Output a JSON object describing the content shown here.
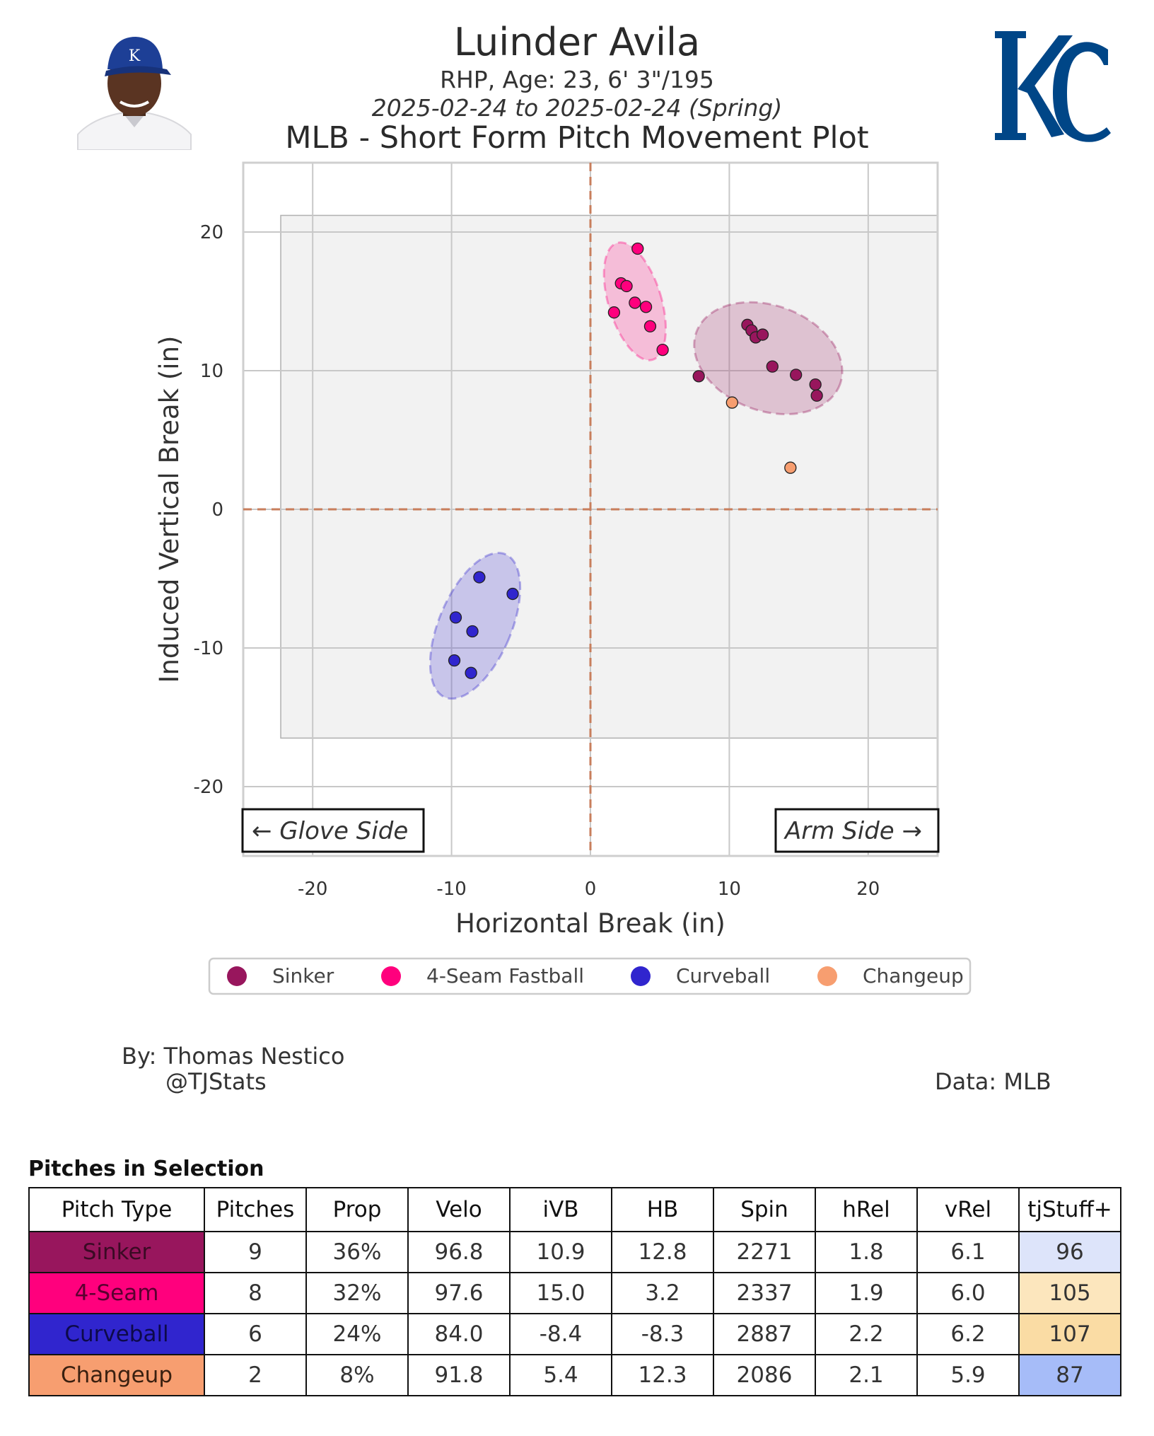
{
  "header": {
    "name": "Luinder Avila",
    "bio": "RHP, Age: 23, 6' 3\"/195",
    "dates": "2025-02-24 to 2025-02-24 (Spring)",
    "title": "MLB - Short Form Pitch Movement Plot"
  },
  "team": {
    "logo_text": "KC",
    "color": "#004687"
  },
  "chart_data": {
    "type": "scatter",
    "title": "MLB - Short Form Pitch Movement Plot",
    "xlabel": "Horizontal Break (in)",
    "ylabel": "Induced Vertical Break (in)",
    "xlim": [
      -25,
      25
    ],
    "ylim": [
      -25,
      25
    ],
    "xticks": [
      -20,
      -10,
      0,
      10,
      20
    ],
    "yticks": [
      20,
      10,
      0,
      -10,
      -20
    ],
    "grid": true,
    "strike_box": {
      "x": [
        -22.3,
        25
      ],
      "y": [
        -16.5,
        21.2
      ]
    },
    "annotations": {
      "left": "← Glove Side",
      "right": "Arm Side →"
    },
    "legend_position": "bottom",
    "series": [
      {
        "name": "Sinker",
        "color": "#98165d",
        "ellipse": {
          "cx": 12.8,
          "cy": 10.9,
          "rx": 5.5,
          "ry": 3.8,
          "angle": 20
        },
        "points": [
          [
            7.8,
            9.6
          ],
          [
            11.3,
            13.3
          ],
          [
            11.6,
            12.9
          ],
          [
            11.9,
            12.4
          ],
          [
            12.4,
            12.6
          ],
          [
            13.1,
            10.3
          ],
          [
            14.8,
            9.7
          ],
          [
            16.2,
            9.0
          ],
          [
            16.3,
            8.2
          ]
        ]
      },
      {
        "name": "4-Seam Fastball",
        "color": "#ff007d",
        "ellipse": {
          "cx": 3.2,
          "cy": 15.0,
          "rx": 1.9,
          "ry": 4.4,
          "angle": -17
        },
        "points": [
          [
            3.4,
            18.8
          ],
          [
            2.2,
            16.3
          ],
          [
            2.6,
            16.1
          ],
          [
            3.2,
            14.9
          ],
          [
            1.7,
            14.2
          ],
          [
            4.3,
            13.2
          ],
          [
            5.2,
            11.5
          ],
          [
            4.0,
            14.6
          ]
        ]
      },
      {
        "name": "Curveball",
        "color": "#3025ce",
        "ellipse": {
          "cx": -8.3,
          "cy": -8.4,
          "rx": 2.6,
          "ry": 5.6,
          "angle": 23
        },
        "points": [
          [
            -8.0,
            -4.9
          ],
          [
            -5.6,
            -6.1
          ],
          [
            -9.7,
            -7.8
          ],
          [
            -8.5,
            -8.8
          ],
          [
            -9.8,
            -10.9
          ],
          [
            -8.6,
            -11.8
          ]
        ]
      },
      {
        "name": "Changeup",
        "color": "#f79e70",
        "ellipse": null,
        "points": [
          [
            10.2,
            7.7
          ],
          [
            14.4,
            3.0
          ]
        ]
      }
    ]
  },
  "credits": {
    "by_line": "By: Thomas Nestico",
    "handle": "@TJStats",
    "data": "Data: MLB"
  },
  "table": {
    "title": "Pitches in Selection",
    "headers": [
      "Pitch Type",
      "Pitches",
      "Prop",
      "Velo",
      "iVB",
      "HB",
      "Spin",
      "hRel",
      "vRel",
      "tjStuff+"
    ],
    "rows": [
      {
        "type": "Sinker",
        "type_color": "#98165d",
        "type_text_color": "#3a0a24",
        "values": [
          "9",
          "36%",
          "96.8",
          "10.9",
          "12.8",
          "2271",
          "1.8",
          "6.1"
        ],
        "stuff": "96",
        "stuff_color": "#dde4fa"
      },
      {
        "type": "4-Seam",
        "type_color": "#ff007d",
        "type_text_color": "#5a0030",
        "values": [
          "8",
          "32%",
          "97.6",
          "15.0",
          "3.2",
          "2337",
          "1.9",
          "6.0"
        ],
        "stuff": "105",
        "stuff_color": "#fce6bd"
      },
      {
        "type": "Curveball",
        "type_color": "#3025ce",
        "type_text_color": "#0d0a4a",
        "values": [
          "6",
          "24%",
          "84.0",
          "-8.4",
          "-8.3",
          "2887",
          "2.2",
          "6.2"
        ],
        "stuff": "107",
        "stuff_color": "#fadca4"
      },
      {
        "type": "Changeup",
        "type_color": "#f79e70",
        "type_text_color": "#3a2010",
        "values": [
          "2",
          "8%",
          "91.8",
          "5.4",
          "12.3",
          "2086",
          "2.1",
          "5.9"
        ],
        "stuff": "87",
        "stuff_color": "#a6bcf8"
      }
    ]
  }
}
